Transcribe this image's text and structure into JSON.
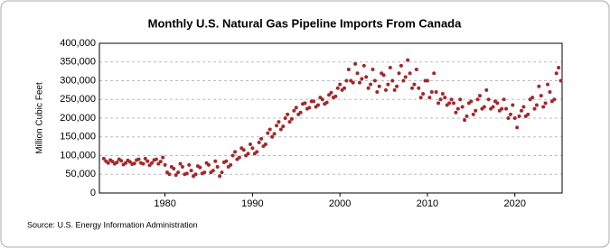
{
  "chart_data": {
    "type": "scatter",
    "title": "Monthly U.S. Natural Gas Pipeline Imports From Canada",
    "y_label": "Million Cubic Feet",
    "source": "Source: U.S. Energy Information Administration",
    "color": "#a3282b",
    "grid": true,
    "xlim": [
      1972.5,
      2025.4
    ],
    "ylim": [
      0,
      400000
    ],
    "xticks": [
      1980,
      1990,
      2000,
      2010,
      2020
    ],
    "yticks": [
      0,
      {
        "value": 50000,
        "label": "50,000"
      },
      {
        "value": 100000,
        "label": "100,000"
      },
      {
        "value": 150000,
        "label": "150,000"
      },
      {
        "value": 200000,
        "label": "200,000"
      },
      {
        "value": 250000,
        "label": "250,000"
      },
      {
        "value": 300000,
        "label": "300,000"
      },
      {
        "value": 350000,
        "label": "350,000"
      },
      {
        "value": 400000,
        "label": "400,000"
      }
    ],
    "x": [
      1973,
      1973.25,
      1973.5,
      1973.75,
      1974,
      1974.25,
      1974.5,
      1974.75,
      1975,
      1975.25,
      1975.5,
      1975.75,
      1976,
      1976.25,
      1976.5,
      1976.75,
      1977,
      1977.25,
      1977.5,
      1977.75,
      1978,
      1978.25,
      1978.5,
      1978.75,
      1979,
      1979.25,
      1979.5,
      1979.75,
      1980,
      1980.25,
      1980.5,
      1980.75,
      1981,
      1981.25,
      1981.5,
      1981.75,
      1982,
      1982.25,
      1982.5,
      1982.75,
      1983,
      1983.25,
      1983.5,
      1983.75,
      1984,
      1984.25,
      1984.5,
      1984.75,
      1985,
      1985.25,
      1985.5,
      1985.75,
      1986,
      1986.25,
      1986.5,
      1986.75,
      1987,
      1987.25,
      1987.5,
      1987.75,
      1988,
      1988.25,
      1988.5,
      1988.75,
      1989,
      1989.25,
      1989.5,
      1989.75,
      1990,
      1990.25,
      1990.5,
      1990.75,
      1991,
      1991.25,
      1991.5,
      1991.75,
      1992,
      1992.25,
      1992.5,
      1992.75,
      1993,
      1993.25,
      1993.5,
      1993.75,
      1994,
      1994.25,
      1994.5,
      1994.75,
      1995,
      1995.25,
      1995.5,
      1995.75,
      1996,
      1996.25,
      1996.5,
      1996.75,
      1997,
      1997.25,
      1997.5,
      1997.75,
      1998,
      1998.25,
      1998.5,
      1998.75,
      1999,
      1999.25,
      1999.5,
      1999.75,
      2000,
      2000.25,
      2000.5,
      2000.75,
      2001,
      2001.25,
      2001.5,
      2001.75,
      2002,
      2002.25,
      2002.5,
      2002.75,
      2003,
      2003.25,
      2003.5,
      2003.75,
      2004,
      2004.25,
      2004.5,
      2004.75,
      2005,
      2005.25,
      2005.5,
      2005.75,
      2006,
      2006.25,
      2006.5,
      2006.75,
      2007,
      2007.25,
      2007.5,
      2007.75,
      2008,
      2008.25,
      2008.5,
      2008.75,
      2009,
      2009.25,
      2009.5,
      2009.75,
      2010,
      2010.25,
      2010.5,
      2010.75,
      2011,
      2011.25,
      2011.5,
      2011.75,
      2012,
      2012.25,
      2012.5,
      2012.75,
      2013,
      2013.25,
      2013.5,
      2013.75,
      2014,
      2014.25,
      2014.5,
      2014.75,
      2015,
      2015.25,
      2015.5,
      2015.75,
      2016,
      2016.25,
      2016.5,
      2016.75,
      2017,
      2017.25,
      2017.5,
      2017.75,
      2018,
      2018.25,
      2018.5,
      2018.75,
      2019,
      2019.25,
      2019.5,
      2019.75,
      2020,
      2020.25,
      2020.5,
      2020.75,
      2021,
      2021.25,
      2021.5,
      2021.75,
      2022,
      2022.25,
      2022.5,
      2022.75,
      2023,
      2023.25,
      2023.5,
      2023.75,
      2024,
      2024.25,
      2024.5,
      2024.75,
      2025,
      2025.25
    ],
    "values": [
      92000,
      85000,
      80000,
      88000,
      84000,
      78000,
      82000,
      90000,
      86000,
      76000,
      80000,
      87000,
      83000,
      77000,
      79000,
      88000,
      90000,
      80000,
      78000,
      92000,
      85000,
      74000,
      80000,
      88000,
      90000,
      78000,
      84000,
      95000,
      75000,
      55000,
      50000,
      70000,
      65000,
      48000,
      55000,
      78000,
      70000,
      50000,
      52000,
      75000,
      60000,
      45000,
      50000,
      72000,
      68000,
      52000,
      55000,
      80000,
      75000,
      55000,
      60000,
      85000,
      70000,
      45000,
      55000,
      82000,
      85000,
      70000,
      75000,
      100000,
      110000,
      90000,
      95000,
      120000,
      115000,
      100000,
      105000,
      130000,
      120000,
      105000,
      110000,
      135000,
      145000,
      125000,
      130000,
      160000,
      170000,
      150000,
      158000,
      180000,
      190000,
      170000,
      178000,
      200000,
      210000,
      190000,
      198000,
      220000,
      228000,
      210000,
      215000,
      238000,
      240000,
      225000,
      228000,
      245000,
      245000,
      230000,
      235000,
      255000,
      250000,
      238000,
      242000,
      262000,
      268000,
      255000,
      258000,
      280000,
      290000,
      275000,
      280000,
      300000,
      330000,
      300000,
      295000,
      345000,
      320000,
      295000,
      305000,
      340000,
      310000,
      280000,
      290000,
      330000,
      300000,
      270000,
      285000,
      320000,
      315000,
      275000,
      290000,
      335000,
      300000,
      275000,
      285000,
      320000,
      340000,
      300000,
      310000,
      355000,
      320000,
      280000,
      290000,
      330000,
      280000,
      255000,
      265000,
      300000,
      300000,
      255000,
      270000,
      320000,
      270000,
      240000,
      250000,
      265000,
      255000,
      235000,
      240000,
      250000,
      240000,
      215000,
      225000,
      250000,
      230000,
      195000,
      205000,
      240000,
      245000,
      210000,
      220000,
      250000,
      260000,
      225000,
      230000,
      275000,
      250000,
      225000,
      230000,
      245000,
      240000,
      220000,
      225000,
      250000,
      225000,
      200000,
      210000,
      235000,
      200000,
      175000,
      205000,
      220000,
      230000,
      205000,
      210000,
      250000,
      255000,
      225000,
      235000,
      285000,
      260000,
      230000,
      240000,
      290000,
      270000,
      245000,
      250000,
      320000,
      335000,
      300000
    ]
  }
}
